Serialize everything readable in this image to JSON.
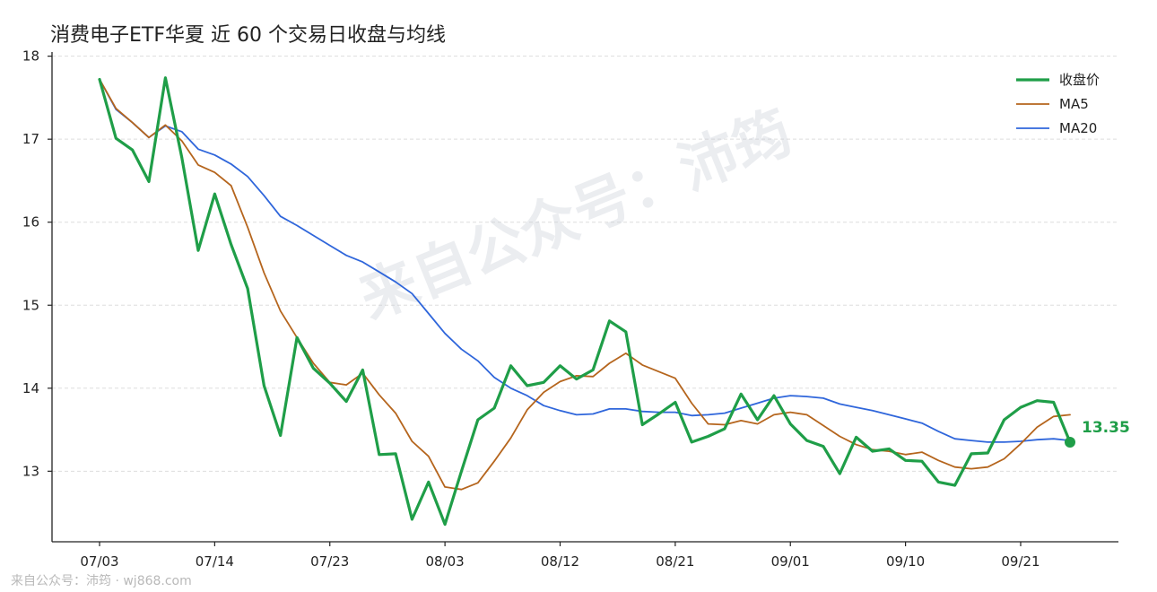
{
  "chart_data": {
    "type": "line",
    "title": "消费电子ETF华夏 近 60 个交易日收盘与均线",
    "xlabel": "",
    "ylabel": "",
    "ylim": [
      12.15,
      18.05
    ],
    "yticks": [
      13,
      14,
      15,
      16,
      17,
      18
    ],
    "xtick_labels": [
      "07/03",
      "07/14",
      "07/23",
      "08/03",
      "08/12",
      "08/21",
      "09/01",
      "09/10",
      "09/21"
    ],
    "xtick_indices": [
      0,
      7,
      14,
      21,
      28,
      35,
      42,
      49,
      56
    ],
    "grid": "horizontal",
    "legend_position": "top-right",
    "series": [
      {
        "name": "收盘价",
        "color": "#1f9e48",
        "values": [
          17.72,
          17.01,
          16.87,
          16.49,
          17.74,
          16.78,
          15.66,
          16.34,
          15.73,
          15.2,
          14.03,
          13.43,
          14.61,
          14.24,
          14.06,
          13.84,
          14.22,
          13.2,
          13.21,
          12.42,
          12.87,
          12.36,
          13.0,
          13.62,
          13.76,
          14.27,
          14.03,
          14.07,
          14.27,
          14.11,
          14.22,
          14.81,
          14.68,
          13.56,
          13.69,
          13.83,
          13.35,
          13.42,
          13.51,
          13.93,
          13.62,
          13.91,
          13.57,
          13.37,
          13.3,
          12.97,
          13.41,
          13.24,
          13.27,
          13.13,
          13.12,
          12.87,
          12.83,
          13.21,
          13.22,
          13.62,
          13.77,
          13.85,
          13.83,
          13.35
        ]
      },
      {
        "name": "MA5",
        "color": "#b5651d",
        "values": [
          17.72,
          17.37,
          17.2,
          17.02,
          17.17,
          16.98,
          16.69,
          16.6,
          16.44,
          15.94,
          15.39,
          14.93,
          14.61,
          14.3,
          14.07,
          14.04,
          14.18,
          13.92,
          13.7,
          13.36,
          13.18,
          12.81,
          12.78,
          12.86,
          13.12,
          13.4,
          13.74,
          13.95,
          14.08,
          14.15,
          14.14,
          14.3,
          14.42,
          14.28,
          14.2,
          14.12,
          13.82,
          13.57,
          13.56,
          13.61,
          13.57,
          13.68,
          13.71,
          13.68,
          13.55,
          13.42,
          13.32,
          13.26,
          13.24,
          13.2,
          13.23,
          13.13,
          13.05,
          13.03,
          13.05,
          13.15,
          13.33,
          13.53,
          13.66,
          13.68
        ]
      },
      {
        "name": "MA20",
        "color": "#2f66db",
        "values": [
          17.72,
          17.36,
          17.2,
          17.02,
          17.16,
          17.09,
          16.88,
          16.81,
          16.7,
          16.55,
          16.32,
          16.07,
          15.96,
          15.84,
          15.72,
          15.6,
          15.52,
          15.4,
          15.28,
          15.14,
          14.9,
          14.66,
          14.47,
          14.33,
          14.13,
          14.0,
          13.91,
          13.79,
          13.73,
          13.68,
          13.69,
          13.75,
          13.75,
          13.72,
          13.71,
          13.71,
          13.67,
          13.68,
          13.7,
          13.76,
          13.82,
          13.88,
          13.91,
          13.9,
          13.88,
          13.81,
          13.77,
          13.73,
          13.68,
          13.63,
          13.58,
          13.48,
          13.39,
          13.37,
          13.35,
          13.35,
          13.36,
          13.38,
          13.39,
          13.37
        ]
      }
    ],
    "last_value_label": "13.35"
  },
  "watermark": "来自公众号：沛筠",
  "footer": "来自公众号：沛筠 · wj868.com"
}
